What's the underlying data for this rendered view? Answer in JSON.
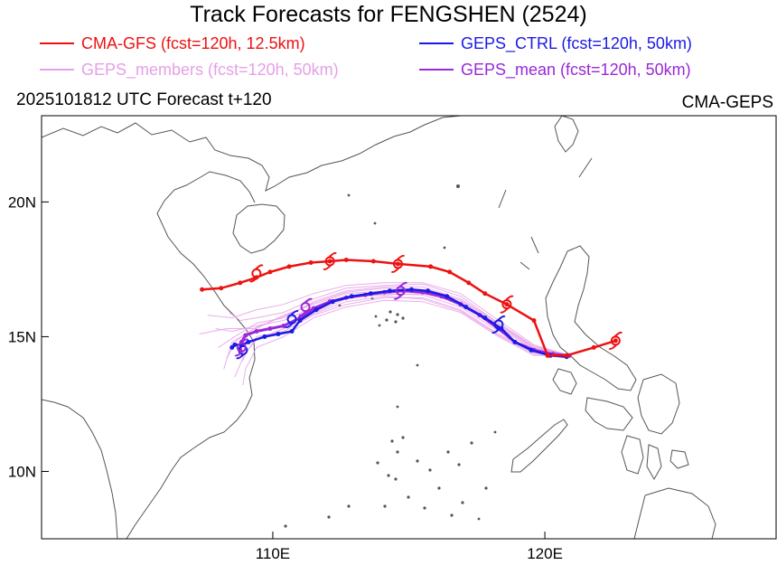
{
  "title": "Track Forecasts for FENGSHEN (2524)",
  "legend": [
    {
      "label": "CMA-GFS (fcst=120h, 12.5km)",
      "color": "#ee1111"
    },
    {
      "label": "GEPS_CTRL (fcst=120h, 50km)",
      "color": "#1a1ae6"
    },
    {
      "label": "GEPS_members (fcst=120h, 50km)",
      "color": "#e6a0e6"
    },
    {
      "label": "GEPS_mean (fcst=120h, 50km)",
      "color": "#9a28d8"
    }
  ],
  "subtitle_left": "2025101812 UTC Forecast t+120",
  "subtitle_right": "CMA-GEPS",
  "axes": {
    "lon_range": [
      101.5,
      128.5
    ],
    "lat_range": [
      7.5,
      23.2
    ],
    "x_ticks": [
      {
        "value": 110,
        "label": "110E"
      },
      {
        "value": 120,
        "label": "120E"
      }
    ],
    "y_ticks": [
      {
        "value": 10,
        "label": "10N"
      },
      {
        "value": 15,
        "label": "15N"
      },
      {
        "value": 20,
        "label": "20N"
      }
    ]
  },
  "tracks": {
    "cma_gfs": [
      [
        122.6,
        14.85
      ],
      [
        121.8,
        14.6
      ],
      [
        120.8,
        14.3
      ],
      [
        120.1,
        14.3
      ],
      [
        119.6,
        15.6
      ],
      [
        118.6,
        16.2
      ],
      [
        117.8,
        16.6
      ],
      [
        117.2,
        17.0
      ],
      [
        116.5,
        17.4
      ],
      [
        115.8,
        17.6
      ],
      [
        114.6,
        17.7
      ],
      [
        113.7,
        17.8
      ],
      [
        112.7,
        17.85
      ],
      [
        112.1,
        17.8
      ],
      [
        111.4,
        17.75
      ],
      [
        110.6,
        17.6
      ],
      [
        109.9,
        17.4
      ],
      [
        109.4,
        17.2
      ],
      [
        108.8,
        17.0
      ],
      [
        108.1,
        16.8
      ],
      [
        107.4,
        16.75
      ]
    ],
    "geps_ctrl": [
      [
        120.8,
        14.25
      ],
      [
        120.2,
        14.3
      ],
      [
        119.5,
        14.5
      ],
      [
        118.9,
        14.8
      ],
      [
        118.4,
        15.3
      ],
      [
        117.8,
        15.7
      ],
      [
        117.1,
        16.1
      ],
      [
        116.4,
        16.5
      ],
      [
        115.7,
        16.7
      ],
      [
        115.1,
        16.75
      ],
      [
        114.3,
        16.7
      ],
      [
        113.6,
        16.6
      ],
      [
        112.9,
        16.5
      ],
      [
        112.2,
        16.3
      ],
      [
        111.6,
        16.0
      ],
      [
        111.0,
        15.6
      ],
      [
        110.7,
        15.2
      ],
      [
        110.2,
        15.1
      ],
      [
        109.7,
        15.0
      ],
      [
        109.1,
        14.8
      ],
      [
        108.9,
        14.7
      ],
      [
        108.6,
        14.7
      ],
      [
        108.5,
        14.6
      ]
    ],
    "geps_mean": [
      [
        120.9,
        14.3
      ],
      [
        120.3,
        14.35
      ],
      [
        119.6,
        14.5
      ],
      [
        118.9,
        14.8
      ],
      [
        118.3,
        15.3
      ],
      [
        117.6,
        15.8
      ],
      [
        116.9,
        16.2
      ],
      [
        116.2,
        16.5
      ],
      [
        115.5,
        16.65
      ],
      [
        114.8,
        16.7
      ],
      [
        114.1,
        16.65
      ],
      [
        113.4,
        16.55
      ],
      [
        112.7,
        16.45
      ],
      [
        112.1,
        16.3
      ],
      [
        111.5,
        16.05
      ],
      [
        111.0,
        15.7
      ],
      [
        110.4,
        15.4
      ],
      [
        109.9,
        15.3
      ],
      [
        109.4,
        15.2
      ],
      [
        109.0,
        15.05
      ],
      [
        108.85,
        14.8
      ],
      [
        108.8,
        14.5
      ]
    ],
    "members": [
      [
        [
          120.9,
          14.3
        ],
        [
          119.6,
          14.6
        ],
        [
          118.3,
          15.5
        ],
        [
          116.9,
          16.4
        ],
        [
          115.5,
          16.85
        ],
        [
          114.1,
          16.85
        ],
        [
          112.7,
          16.7
        ],
        [
          111.5,
          16.3
        ],
        [
          110.4,
          15.7
        ],
        [
          109.4,
          15.5
        ],
        [
          108.6,
          15.0
        ],
        [
          108.0,
          14.6
        ]
      ],
      [
        [
          120.9,
          14.3
        ],
        [
          119.6,
          14.4
        ],
        [
          118.3,
          15.1
        ],
        [
          116.9,
          16.0
        ],
        [
          115.5,
          16.45
        ],
        [
          114.1,
          16.45
        ],
        [
          112.7,
          16.2
        ],
        [
          111.5,
          15.8
        ],
        [
          110.4,
          15.2
        ],
        [
          109.4,
          15.0
        ],
        [
          108.9,
          14.2
        ],
        [
          108.6,
          13.5
        ]
      ],
      [
        [
          120.9,
          14.3
        ],
        [
          119.6,
          14.7
        ],
        [
          118.3,
          15.6
        ],
        [
          116.9,
          16.6
        ],
        [
          115.5,
          17.0
        ],
        [
          114.1,
          17.0
        ],
        [
          112.7,
          16.9
        ],
        [
          111.5,
          16.6
        ],
        [
          110.4,
          16.2
        ],
        [
          109.4,
          16.0
        ],
        [
          108.5,
          15.7
        ],
        [
          107.6,
          15.8
        ]
      ],
      [
        [
          120.9,
          14.3
        ],
        [
          119.6,
          14.3
        ],
        [
          118.3,
          15.0
        ],
        [
          116.9,
          15.9
        ],
        [
          115.5,
          16.3
        ],
        [
          114.1,
          16.35
        ],
        [
          112.7,
          16.1
        ],
        [
          111.5,
          15.7
        ],
        [
          110.4,
          15.0
        ],
        [
          109.4,
          14.6
        ],
        [
          109.0,
          13.8
        ],
        [
          108.9,
          13.2
        ]
      ],
      [
        [
          120.9,
          14.3
        ],
        [
          119.6,
          14.55
        ],
        [
          118.3,
          15.4
        ],
        [
          116.9,
          16.3
        ],
        [
          115.5,
          16.7
        ],
        [
          114.1,
          16.7
        ],
        [
          112.7,
          16.6
        ],
        [
          111.5,
          16.2
        ],
        [
          110.4,
          15.8
        ],
        [
          109.4,
          15.3
        ],
        [
          108.3,
          15.3
        ],
        [
          107.3,
          15.1
        ]
      ],
      [
        [
          120.9,
          14.3
        ],
        [
          119.6,
          14.45
        ],
        [
          118.3,
          15.2
        ],
        [
          116.9,
          16.1
        ],
        [
          115.5,
          16.55
        ],
        [
          114.1,
          16.6
        ],
        [
          112.7,
          16.4
        ],
        [
          111.5,
          15.9
        ],
        [
          110.4,
          15.4
        ],
        [
          109.4,
          15.2
        ],
        [
          108.7,
          14.9
        ],
        [
          108.3,
          14.2
        ]
      ],
      [
        [
          120.9,
          14.3
        ],
        [
          119.6,
          14.65
        ],
        [
          118.3,
          15.5
        ],
        [
          116.9,
          16.5
        ],
        [
          115.5,
          16.95
        ],
        [
          114.1,
          16.9
        ],
        [
          112.7,
          16.8
        ],
        [
          111.5,
          16.4
        ],
        [
          110.4,
          15.9
        ],
        [
          109.4,
          15.7
        ],
        [
          108.8,
          15.6
        ],
        [
          108.4,
          15.9
        ]
      ],
      [
        [
          120.9,
          14.3
        ],
        [
          119.6,
          14.35
        ],
        [
          118.3,
          15.05
        ],
        [
          116.9,
          15.95
        ],
        [
          115.5,
          16.4
        ],
        [
          114.1,
          16.5
        ],
        [
          112.7,
          16.3
        ],
        [
          111.5,
          15.85
        ],
        [
          110.4,
          15.3
        ],
        [
          109.4,
          14.9
        ],
        [
          109.0,
          14.4
        ],
        [
          108.9,
          14.1
        ]
      ],
      [
        [
          120.9,
          14.3
        ],
        [
          119.6,
          14.5
        ],
        [
          118.3,
          15.35
        ],
        [
          116.9,
          16.25
        ],
        [
          115.5,
          16.6
        ],
        [
          114.1,
          16.55
        ],
        [
          112.7,
          16.5
        ],
        [
          111.5,
          16.1
        ],
        [
          110.4,
          15.6
        ],
        [
          109.4,
          15.4
        ],
        [
          108.5,
          15.2
        ],
        [
          107.9,
          15.3
        ]
      ],
      [
        [
          120.9,
          14.3
        ],
        [
          119.6,
          14.6
        ],
        [
          118.3,
          15.45
        ],
        [
          116.9,
          16.35
        ],
        [
          115.5,
          16.75
        ],
        [
          114.1,
          16.8
        ],
        [
          112.7,
          16.65
        ],
        [
          111.5,
          16.25
        ],
        [
          110.4,
          15.75
        ],
        [
          109.4,
          15.35
        ],
        [
          108.5,
          14.8
        ],
        [
          108.2,
          13.8
        ]
      ]
    ],
    "cma_gfs_markers": [
      [
        122.6,
        14.85
      ],
      [
        118.6,
        16.2
      ],
      [
        114.6,
        17.7
      ],
      [
        112.1,
        17.8
      ],
      [
        109.4,
        17.35
      ]
    ],
    "geps_ctrl_markers": [
      [
        110.7,
        15.65
      ],
      [
        108.9,
        14.5
      ],
      [
        118.3,
        15.45
      ]
    ],
    "geps_mean_markers": [
      [
        114.7,
        16.7
      ],
      [
        111.2,
        16.1
      ],
      [
        108.85,
        14.6
      ]
    ]
  },
  "map": {
    "land_color": "#ffffff",
    "coast_color": "#555555"
  }
}
